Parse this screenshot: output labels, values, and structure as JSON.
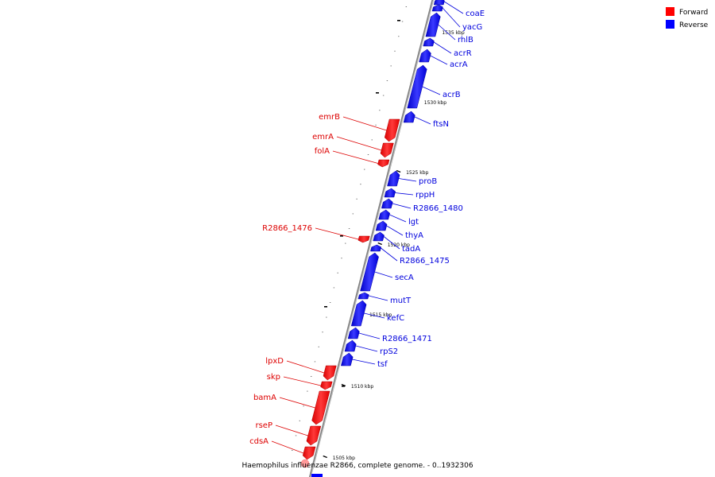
{
  "caption": "Haemophilus influenzae R2866, complete genome. - 0..1932306",
  "legend": {
    "placement": "top-right",
    "items": [
      {
        "label": "Forward",
        "color": "#ff0000"
      },
      {
        "label": "Reverse",
        "color": "#0000ff"
      }
    ]
  },
  "colors": {
    "forward": "#ff0000",
    "reverse": "#0000ff",
    "backbone": "#808080"
  },
  "ticks": [
    {
      "label": "1535 kbp"
    },
    {
      "label": "1530 kbp"
    },
    {
      "label": "1525 kbp"
    },
    {
      "label": "1520 kbp"
    },
    {
      "label": "1515 kbp"
    },
    {
      "label": "1510 kbp"
    },
    {
      "label": "1505 kbp"
    }
  ],
  "genes": [
    {
      "name": "coaE",
      "strand": "reverse"
    },
    {
      "name": "yacG",
      "strand": "reverse"
    },
    {
      "name": "rhlB",
      "strand": "reverse"
    },
    {
      "name": "acrR",
      "strand": "reverse"
    },
    {
      "name": "acrA",
      "strand": "reverse"
    },
    {
      "name": "acrB",
      "strand": "reverse"
    },
    {
      "name": "ftsN",
      "strand": "reverse"
    },
    {
      "name": "emrB",
      "strand": "forward"
    },
    {
      "name": "emrA",
      "strand": "forward"
    },
    {
      "name": "folA",
      "strand": "forward"
    },
    {
      "name": "proB",
      "strand": "reverse"
    },
    {
      "name": "rppH",
      "strand": "reverse"
    },
    {
      "name": "R2866_1480",
      "strand": "reverse"
    },
    {
      "name": "lgt",
      "strand": "reverse"
    },
    {
      "name": "thyA",
      "strand": "reverse"
    },
    {
      "name": "R2866_1476",
      "strand": "forward"
    },
    {
      "name": "tadA",
      "strand": "reverse"
    },
    {
      "name": "R2866_1475",
      "strand": "reverse"
    },
    {
      "name": "secA",
      "strand": "reverse"
    },
    {
      "name": "mutT",
      "strand": "reverse"
    },
    {
      "name": "kefC",
      "strand": "reverse"
    },
    {
      "name": "R2866_1471",
      "strand": "reverse"
    },
    {
      "name": "rpS2",
      "strand": "reverse"
    },
    {
      "name": "tsf",
      "strand": "reverse"
    },
    {
      "name": "lpxD",
      "strand": "forward"
    },
    {
      "name": "skp",
      "strand": "forward"
    },
    {
      "name": "bamA",
      "strand": "forward"
    },
    {
      "name": "rseP",
      "strand": "forward"
    },
    {
      "name": "cdsA",
      "strand": "forward"
    }
  ]
}
